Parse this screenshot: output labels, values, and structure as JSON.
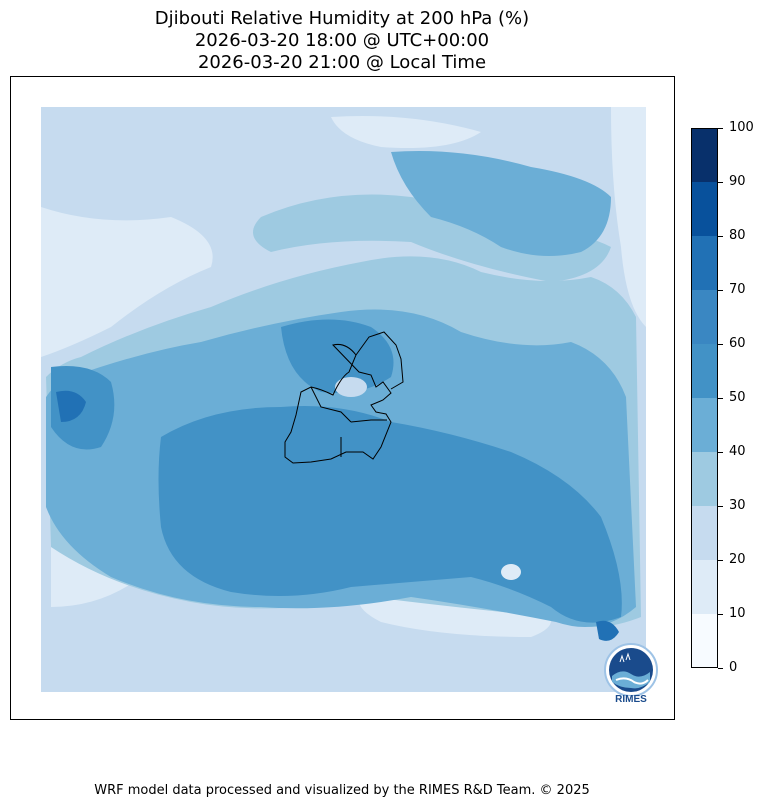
{
  "title": {
    "line1": "Djibouti Relative Humidity at 200 hPa (%)",
    "line2": "2026-03-20 18:00 @ UTC+00:00",
    "line3": "2026-03-20 21:00 @ Local Time"
  },
  "colorbar": {
    "ticks": [
      "0",
      "10",
      "20",
      "30",
      "40",
      "50",
      "60",
      "70",
      "80",
      "90",
      "100"
    ],
    "colors": [
      "#f7fbff",
      "#deebf7",
      "#c6dbef",
      "#9ecae1",
      "#6baed6",
      "#4292c6",
      "#3a87c2",
      "#2171b5",
      "#08519c",
      "#08306b"
    ]
  },
  "logo": {
    "text": "RIMES"
  },
  "footer": "WRF model data processed and visualized by the RIMES R&D Team. © 2025"
}
